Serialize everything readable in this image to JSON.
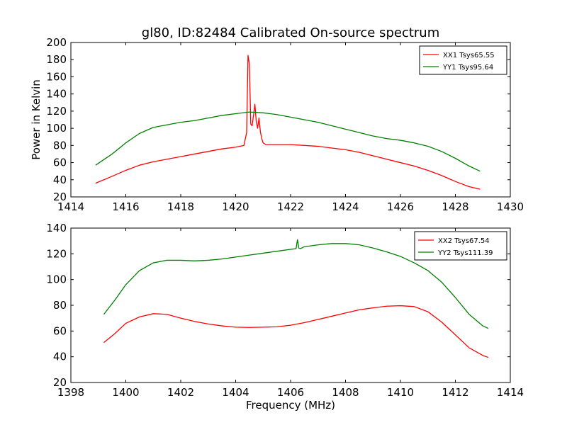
{
  "figure_title": "gl80, ID:82484 Calibrated On-source spectrum",
  "chart_data": [
    {
      "type": "line",
      "title": "gl80, ID:82484 Calibrated On-source spectrum",
      "xlabel": "",
      "ylabel": "Power in Kelvin",
      "xlim": [
        1414,
        1430
      ],
      "ylim": [
        20,
        200
      ],
      "xticks": [
        1414,
        1416,
        1418,
        1420,
        1422,
        1424,
        1426,
        1428,
        1430
      ],
      "yticks": [
        20,
        40,
        60,
        80,
        100,
        120,
        140,
        160,
        180,
        200
      ],
      "grid": false,
      "legend_position": "top-right",
      "series": [
        {
          "name": "XX1 Tsys65.55",
          "color": "#ff0000",
          "x": [
            1414.9,
            1415.5,
            1416.0,
            1416.5,
            1417.0,
            1417.5,
            1418.0,
            1418.5,
            1419.0,
            1419.5,
            1420.0,
            1420.3,
            1420.4,
            1420.45,
            1420.5,
            1420.55,
            1420.6,
            1420.65,
            1420.7,
            1420.75,
            1420.8,
            1420.85,
            1420.9,
            1420.95,
            1421.0,
            1421.1,
            1421.2,
            1421.5,
            1422.0,
            1422.5,
            1423.0,
            1423.5,
            1424.0,
            1424.5,
            1425.0,
            1425.5,
            1426.0,
            1426.5,
            1427.0,
            1427.5,
            1428.0,
            1428.5,
            1428.9
          ],
          "y": [
            36,
            44,
            51,
            57,
            61,
            64,
            67,
            70,
            73,
            76,
            78,
            80,
            95,
            185,
            175,
            105,
            103,
            115,
            128,
            108,
            100,
            112,
            96,
            88,
            83,
            81,
            81,
            81,
            81,
            80,
            79,
            77,
            75,
            72,
            68,
            64,
            60,
            56,
            51,
            45,
            38,
            32,
            29
          ]
        },
        {
          "name": "YY1 Tsys95.64",
          "color": "#008000",
          "x": [
            1414.9,
            1415.5,
            1416.0,
            1416.5,
            1417.0,
            1417.5,
            1418.0,
            1418.5,
            1419.0,
            1419.5,
            1420.0,
            1420.5,
            1421.0,
            1421.5,
            1422.0,
            1422.5,
            1423.0,
            1423.5,
            1424.0,
            1424.5,
            1425.0,
            1425.5,
            1426.0,
            1426.5,
            1427.0,
            1427.5,
            1428.0,
            1428.5,
            1428.9
          ],
          "y": [
            57,
            70,
            83,
            94,
            101,
            104,
            107,
            109,
            112,
            115,
            117,
            119,
            118,
            116,
            113,
            110,
            107,
            103,
            99,
            95,
            91,
            88,
            86,
            83,
            79,
            73,
            65,
            56,
            50
          ]
        }
      ]
    },
    {
      "type": "line",
      "title": "",
      "xlabel": "Frequency (MHz)",
      "ylabel": "",
      "xlim": [
        1398,
        1414
      ],
      "ylim": [
        20,
        140
      ],
      "xticks": [
        1398,
        1400,
        1402,
        1404,
        1406,
        1408,
        1410,
        1412,
        1414
      ],
      "yticks": [
        20,
        40,
        60,
        80,
        100,
        120,
        140
      ],
      "grid": false,
      "legend_position": "top-right",
      "series": [
        {
          "name": "XX2 Tsys67.54",
          "color": "#ff0000",
          "x": [
            1399.2,
            1399.6,
            1400.0,
            1400.5,
            1401.0,
            1401.5,
            1402.0,
            1402.5,
            1403.0,
            1403.5,
            1404.0,
            1404.5,
            1405.0,
            1405.5,
            1406.0,
            1406.5,
            1407.0,
            1407.5,
            1408.0,
            1408.5,
            1409.0,
            1409.5,
            1410.0,
            1410.5,
            1411.0,
            1411.5,
            1412.0,
            1412.5,
            1413.0,
            1413.2
          ],
          "y": [
            51,
            58,
            66,
            71,
            73.5,
            73,
            70,
            67.5,
            65.5,
            64,
            63,
            62.8,
            63,
            63.3,
            64.5,
            66.5,
            69,
            71.5,
            74,
            76.5,
            78,
            79.3,
            79.7,
            79,
            75,
            67,
            57,
            47,
            41,
            39.5
          ]
        },
        {
          "name": "YY2 Tsys111.39",
          "color": "#008000",
          "x": [
            1399.2,
            1399.6,
            1400.0,
            1400.5,
            1401.0,
            1401.5,
            1402.0,
            1402.5,
            1403.0,
            1403.5,
            1404.0,
            1404.5,
            1405.0,
            1405.5,
            1406.0,
            1406.2,
            1406.25,
            1406.3,
            1406.35,
            1406.5,
            1407.0,
            1407.5,
            1408.0,
            1408.5,
            1409.0,
            1409.5,
            1410.0,
            1410.5,
            1411.0,
            1411.5,
            1412.0,
            1412.5,
            1413.0,
            1413.2
          ],
          "y": [
            73,
            84,
            96,
            107,
            113,
            115,
            115,
            114.5,
            115,
            116,
            117.5,
            119,
            120.5,
            122,
            123.5,
            124,
            131,
            124.5,
            124,
            125.5,
            127,
            128,
            128,
            127,
            124.5,
            121.5,
            118,
            113,
            107,
            98,
            86,
            73,
            64,
            62
          ]
        }
      ]
    }
  ]
}
